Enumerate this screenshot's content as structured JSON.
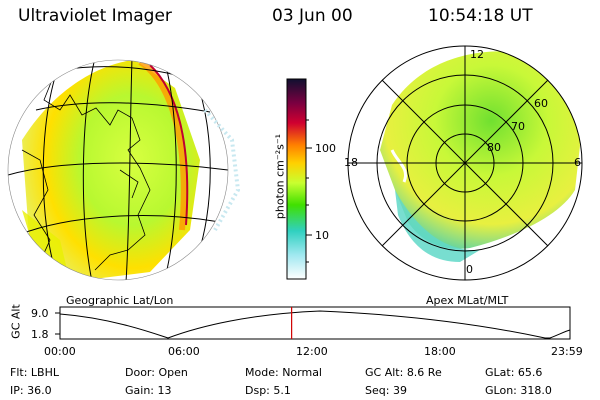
{
  "header": {
    "title": "Ultraviolet Imager",
    "date": "03 Jun 00",
    "time": "10:54:18 UT"
  },
  "colorbar": {
    "unit_label": "photon cm⁻²s⁻¹",
    "ticks": [
      "100",
      "10"
    ],
    "colors": [
      "#101030",
      "#7a0040",
      "#d00030",
      "#ff8000",
      "#ffd000",
      "#c8ff30",
      "#40e000",
      "#30d0c0",
      "#a0e8f0",
      "#ffffff"
    ]
  },
  "geographic_view": {
    "label": "Geographic Lat/Lon"
  },
  "polar_view": {
    "label": "Apex MLat/MLT",
    "mlt_labels": {
      "top": "12",
      "left": "18",
      "right": "6",
      "bottom": "0"
    },
    "lat_labels": [
      "60",
      "70",
      "80"
    ]
  },
  "altitude_plot": {
    "ylabel": "GC Alt",
    "y_ticks": [
      "9.0",
      "1.8"
    ],
    "x_ticks": [
      "00:00",
      "06:00",
      "12:00",
      "18:00",
      "23:59"
    ],
    "current_marker_hours": 10.9
  },
  "info": {
    "row1": [
      {
        "label": "Flt:",
        "value": "LBHL"
      },
      {
        "label": "Door:",
        "value": "Open"
      },
      {
        "label": "Mode:",
        "value": "Normal"
      },
      {
        "label": "GC Alt:",
        "value": "8.6 Re"
      },
      {
        "label": "GLat:",
        "value": "65.6"
      }
    ],
    "row2": [
      {
        "label": "IP:",
        "value": "36.0"
      },
      {
        "label": "Gain:",
        "value": "13"
      },
      {
        "label": "Dsp:",
        "value": "5.1"
      },
      {
        "label": "Seq:",
        "value": "39"
      },
      {
        "label": "GLon:",
        "value": "318.0"
      }
    ]
  }
}
